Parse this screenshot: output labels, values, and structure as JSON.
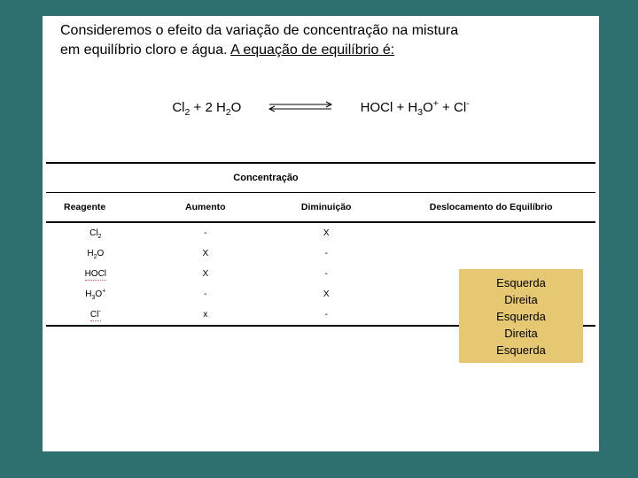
{
  "intro": {
    "line1": "Consideremos o efeito da variação de concentração na mistura",
    "line2_a": "em equilíbrio cloro e água. ",
    "line2_b": "A equação de equilíbrio é:"
  },
  "equation": {
    "left_cl": "Cl",
    "left_sub2": "2",
    "left_plus": " + 2 H",
    "left_sub2b": "2",
    "left_o": "O",
    "right_a": "HOCl + H",
    "right_sub3": "3",
    "right_o": "O",
    "right_sup_plus": "+",
    "right_plus_cl": " + Cl",
    "right_sup_minus": "-"
  },
  "table": {
    "header_concentracao": "Concentração",
    "header_reagente": "Reagente",
    "header_aumento": "Aumento",
    "header_diminuicao": "Diminuição",
    "header_deslocamento": "Deslocamento do Equilíbrio",
    "rows": [
      {
        "reagente_main": "Cl",
        "reagente_sub": "2",
        "reagente_sup": "",
        "aumento": "-",
        "diminuicao": "X",
        "dotted": false
      },
      {
        "reagente_main": "H",
        "reagente_sub": "2",
        "reagente_sup": "",
        "reagente_tail": "O",
        "aumento": "X",
        "diminuicao": "-",
        "dotted": false
      },
      {
        "reagente_main": "HOCl",
        "reagente_sub": "",
        "reagente_sup": "",
        "aumento": "X",
        "diminuicao": "-",
        "dotted": true
      },
      {
        "reagente_main": "H",
        "reagente_sub": "3",
        "reagente_sup": "+",
        "reagente_tail": "O",
        "aumento": "-",
        "diminuicao": "X",
        "dotted": false
      },
      {
        "reagente_main": "Cl",
        "reagente_sub": "",
        "reagente_sup": "-",
        "aumento": "x",
        "diminuicao": "-",
        "dotted": true
      }
    ]
  },
  "answers": [
    "Esquerda",
    "Direita",
    "Esquerda",
    "Direita",
    "Esquerda"
  ],
  "colors": {
    "background": "#2e7070",
    "slide": "#ffffff",
    "answers_box": "#e6c873",
    "dotted": "#c0504d"
  }
}
